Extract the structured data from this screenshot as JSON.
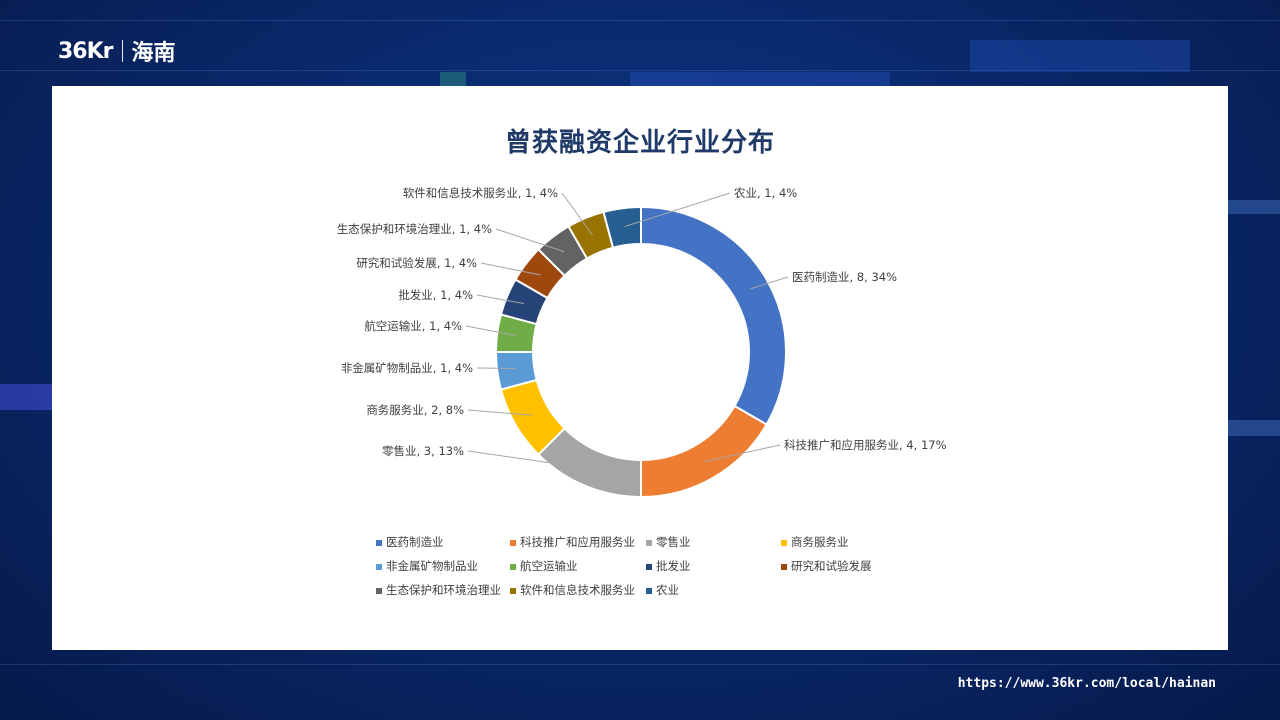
{
  "brand": {
    "logo": "36Kr",
    "region": "海南"
  },
  "footer": {
    "url": "https://www.36kr.com/local/hainan"
  },
  "chart_data": {
    "type": "pie",
    "variant": "donut",
    "title": "曾获融资企业行业分布",
    "categories": [
      "医药制造业",
      "科技推广和应用服务业",
      "零售业",
      "商务服务业",
      "非金属矿物制品业",
      "航空运输业",
      "批发业",
      "研究和试验发展",
      "生态保护和环境治理业",
      "软件和信息技术服务业",
      "农业"
    ],
    "values": [
      8,
      4,
      3,
      2,
      1,
      1,
      1,
      1,
      1,
      1,
      1
    ],
    "percent_labels": [
      "34%",
      "17%",
      "13%",
      "8%",
      "4%",
      "4%",
      "4%",
      "4%",
      "4%",
      "4%",
      "4%"
    ],
    "colors": [
      "#4472C4",
      "#ED7D31",
      "#A5A5A5",
      "#FFC000",
      "#5B9BD5",
      "#70AD47",
      "#264478",
      "#9E480E",
      "#636363",
      "#997300",
      "#255E91"
    ],
    "legend_position": "bottom"
  }
}
